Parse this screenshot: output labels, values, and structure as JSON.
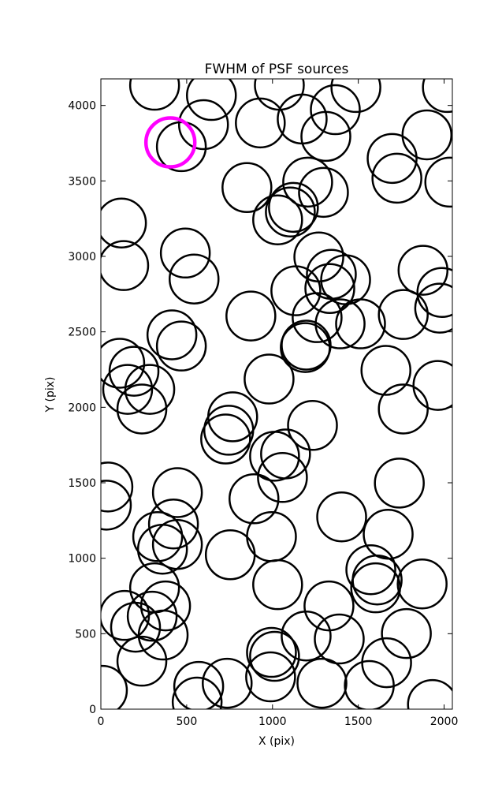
{
  "chart_data": {
    "type": "scatter",
    "title": "FWHM of PSF sources",
    "x_label": "X (pix)",
    "y_label": "Y (pix)",
    "xlim": [
      0,
      2048
    ],
    "ylim": [
      0,
      4176
    ],
    "xticks": [
      0,
      500,
      1000,
      1500,
      2000
    ],
    "yticks": [
      0,
      500,
      1000,
      1500,
      2000,
      2500,
      3000,
      3500,
      4000
    ],
    "grid": false,
    "series": [
      {
        "color": "#000000",
        "x": [
          313,
          644,
          598,
          469,
          929,
          1040,
          1173,
          1311,
          1366,
          1486,
          2019,
          1900,
          1697,
          1725,
          2033,
          851,
          1205,
          1297,
          1122,
          1104,
          1030,
          120,
          133,
          492,
          543,
          1270,
          1343,
          1426,
          1136,
          1334,
          1877,
          1987,
          1974,
          1762,
          874,
          1260,
          1394,
          1513,
          414,
          469,
          1196,
          1191,
          110,
          193,
          156,
          285,
          239,
          980,
          1661,
          1762,
          1964,
          768,
          745,
          727,
          1233,
          1012,
          1076,
          1058,
          1739,
          41,
          32,
          446,
          892,
          423,
          1403,
          331,
          359,
          446,
          994,
          1674,
          754,
          1573,
          1610,
          1601,
          1872,
          1030,
          313,
          377,
          299,
          138,
          202,
          1329,
          1780,
          363,
          1196,
          1389,
          994,
          1012,
          239,
          1665,
          989,
          1288,
          1564,
          736,
          570,
          561,
          1932,
          9
        ],
        "values": [
          4134,
          4066,
          3873,
          3727,
          3884,
          4134,
          3910,
          3795,
          3972,
          4119,
          4119,
          3805,
          3649,
          3518,
          3492,
          3456,
          3492,
          3424,
          3325,
          3294,
          3242,
          3221,
          2939,
          3022,
          2850,
          2996,
          2881,
          2845,
          2772,
          2787,
          2908,
          2761,
          2657,
          2615,
          2605,
          2594,
          2553,
          2553,
          2480,
          2406,
          2412,
          2396,
          2292,
          2239,
          2119,
          2119,
          1989,
          2187,
          2245,
          1989,
          2145,
          1937,
          1848,
          1790,
          1880,
          1676,
          1691,
          1535,
          1498,
          1472,
          1352,
          1435,
          1394,
          1227,
          1274,
          1143,
          1060,
          1091,
          1143,
          1159,
          1023,
          924,
          856,
          804,
          830,
          825,
          804,
          684,
          616,
          621,
          543,
          684,
          501,
          491,
          485,
          465,
          376,
          350,
          318,
          308,
          214,
          172,
          157,
          172,
          151,
          47,
          31,
          125
        ]
      },
      {
        "color": "#ff00ff",
        "x": [
          405
        ],
        "values": [
          3755
        ]
      }
    ]
  }
}
